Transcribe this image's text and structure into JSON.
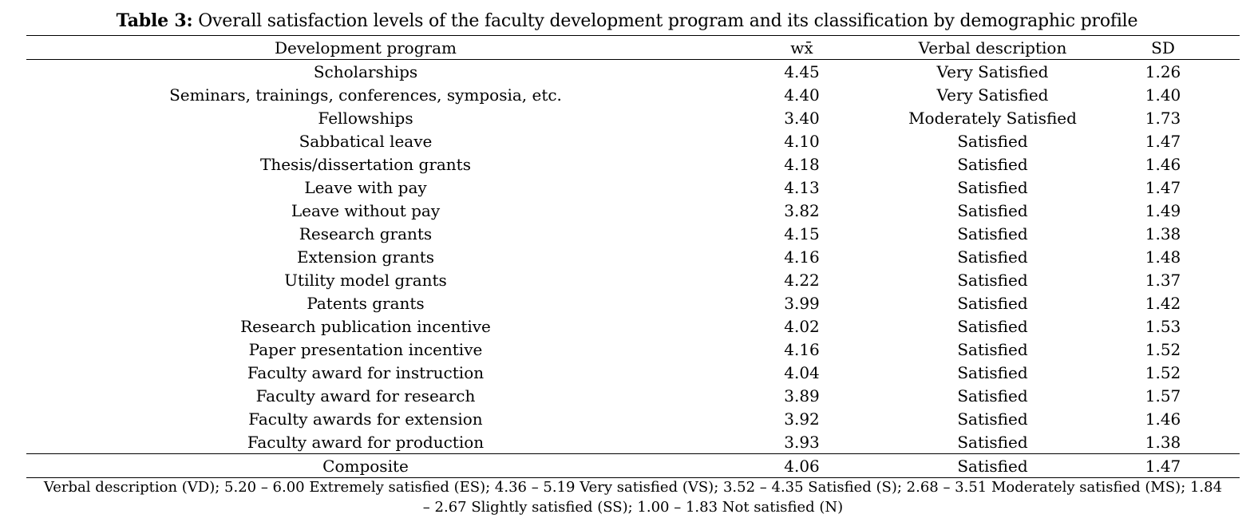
{
  "title": {
    "label": "Table 3:",
    "text": " Overall satisfaction levels of the faculty development program and its classification by demographic profile"
  },
  "table": {
    "headers": [
      "Development program",
      "wx̄",
      "Verbal description",
      "SD"
    ],
    "rows": [
      [
        "Scholarships",
        "4.45",
        "Very Satisfied",
        "1.26"
      ],
      [
        "Seminars, trainings, conferences, symposia, etc.",
        "4.40",
        "Very Satisfied",
        "1.40"
      ],
      [
        "Fellowships",
        "3.40",
        "Moderately Satisfied",
        "1.73"
      ],
      [
        "Sabbatical leave",
        "4.10",
        "Satisfied",
        "1.47"
      ],
      [
        "Thesis/dissertation grants",
        "4.18",
        "Satisfied",
        "1.46"
      ],
      [
        "Leave with pay",
        "4.13",
        "Satisfied",
        "1.47"
      ],
      [
        "Leave without pay",
        "3.82",
        "Satisfied",
        "1.49"
      ],
      [
        "Research grants",
        "4.15",
        "Satisfied",
        "1.38"
      ],
      [
        "Extension grants",
        "4.16",
        "Satisfied",
        "1.48"
      ],
      [
        "Utility model grants",
        "4.22",
        "Satisfied",
        "1.37"
      ],
      [
        "Patents grants",
        "3.99",
        "Satisfied",
        "1.42"
      ],
      [
        "Research publication incentive",
        "4.02",
        "Satisfied",
        "1.53"
      ],
      [
        "Paper presentation incentive",
        "4.16",
        "Satisfied",
        "1.52"
      ],
      [
        "Faculty award for instruction",
        "4.04",
        "Satisfied",
        "1.52"
      ],
      [
        "Faculty award for research",
        "3.89",
        "Satisfied",
        "1.57"
      ],
      [
        "Faculty awards for extension",
        "3.92",
        "Satisfied",
        "1.46"
      ],
      [
        "Faculty award for production",
        "3.93",
        "Satisfied",
        "1.38"
      ]
    ],
    "composite": [
      "Composite",
      "4.06",
      "Satisfied",
      "1.47"
    ]
  },
  "footnote": {
    "line1": "Verbal description (VD); 5.20 – 6.00 Extremely satisfied (ES); 4.36 – 5.19 Very satisfied (VS); 3.52 – 4.35 Satisfied (S); 2.68 – 3.51 Moderately satisfied (MS); 1.84",
    "line2": "– 2.67 Slightly satisfied (SS); 1.00 – 1.83 Not satisfied (N)"
  }
}
